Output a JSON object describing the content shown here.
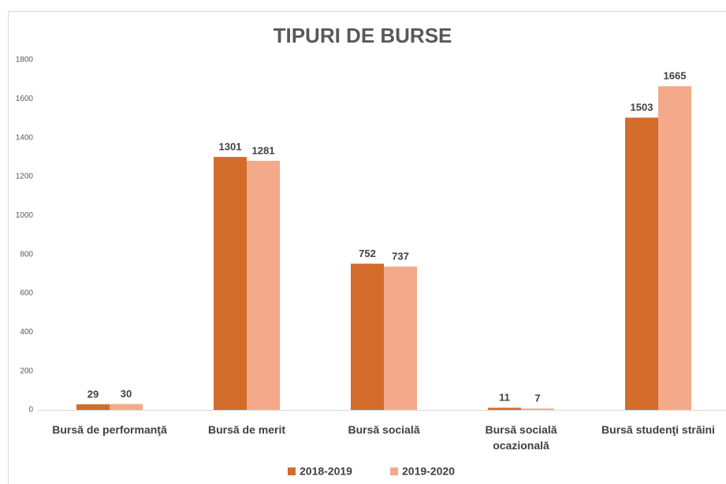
{
  "chart_data": {
    "type": "bar",
    "title": "TIPURI DE BURSE",
    "categories": [
      "Bursă de performanţă",
      "Bursă de merit",
      "Bursă socială",
      "Bursă socială ocazională",
      "Bursă studenţi străini"
    ],
    "series": [
      {
        "name": "2018-2019",
        "color": "#d36c2a",
        "values": [
          29,
          1301,
          752,
          11,
          1503
        ]
      },
      {
        "name": "2019-2020",
        "color": "#f4a98a",
        "values": [
          30,
          1281,
          737,
          7,
          1665
        ]
      }
    ],
    "ylim": [
      0,
      1800
    ],
    "yticks": [
      0,
      200,
      400,
      600,
      800,
      1000,
      1200,
      1400,
      1600,
      1800
    ],
    "grid": false,
    "legend": "bottom"
  }
}
